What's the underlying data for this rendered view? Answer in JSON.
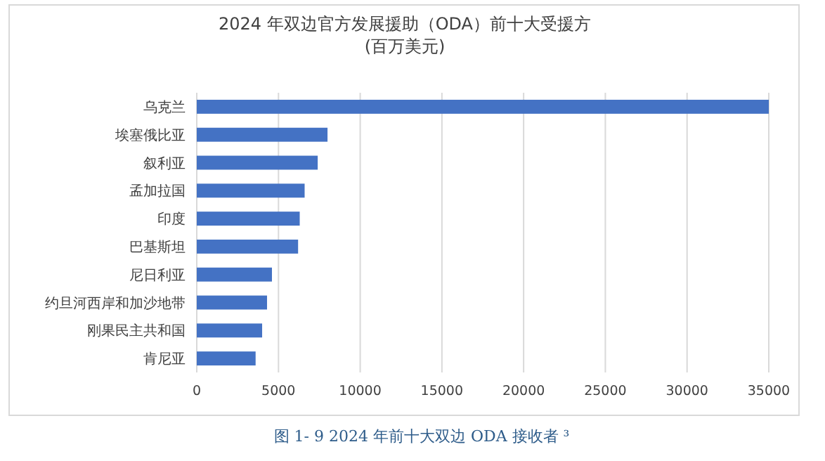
{
  "chart_data": {
    "type": "bar",
    "orientation": "horizontal",
    "title": "2024 年双边官方发展援助（ODA）前十大受援方",
    "subtitle": "(百万美元)",
    "categories": [
      "乌克兰",
      "埃塞俄比亚",
      "叙利亚",
      "孟加拉国",
      "印度",
      "巴基斯坦",
      "尼日利亚",
      "约旦河西岸和加沙地带",
      "刚果民主共和国",
      "肯尼亚"
    ],
    "values": [
      35000,
      8000,
      7400,
      6600,
      6300,
      6200,
      4600,
      4300,
      4000,
      3600
    ],
    "color": "#4472c4",
    "xlim": [
      0,
      35000
    ],
    "xticks": [
      0,
      5000,
      10000,
      15000,
      20000,
      25000,
      30000,
      35000
    ],
    "grid": "x",
    "annotations": [
      "图 1- 9 2024 年前十大双边 ODA 接收者 ³"
    ]
  }
}
